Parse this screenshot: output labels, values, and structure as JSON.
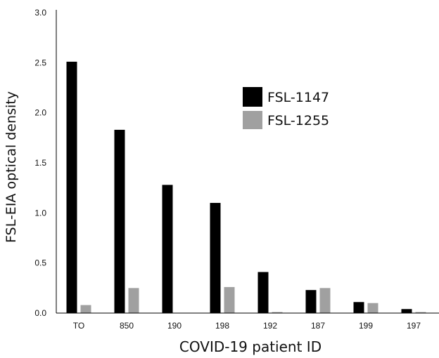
{
  "chart_data": {
    "type": "bar",
    "xlabel": "COVID-19 patient ID",
    "ylabel": "FSL-EIA optical density",
    "ylim": [
      0,
      3.0
    ],
    "y_ticks": [
      "0.0",
      "0.5",
      "1.0",
      "1.5",
      "2.0",
      "2.5",
      "3.0"
    ],
    "categories": [
      "TO",
      "850",
      "190",
      "198",
      "192",
      "187",
      "199",
      "197"
    ],
    "series": [
      {
        "name": "FSL-1147",
        "color": "#000000",
        "values": [
          2.51,
          1.83,
          1.28,
          1.1,
          0.41,
          0.23,
          0.11,
          0.04
        ]
      },
      {
        "name": "FSL-1255",
        "color": "#a0a0a0",
        "values": [
          0.08,
          0.25,
          0.0,
          0.26,
          0.01,
          0.25,
          0.1,
          0.01
        ]
      }
    ],
    "legend": "upper-right",
    "grid": false
  }
}
